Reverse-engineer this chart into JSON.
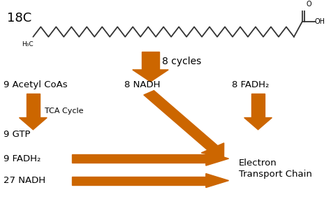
{
  "bg_color": "#ffffff",
  "arrow_color": "#cc6600",
  "text_color": "#000000",
  "figsize": [
    4.74,
    2.95
  ],
  "dpi": 100,
  "title_18C": "18C",
  "molecule_label": "H₃C",
  "cycles_label": "8 cycles",
  "acetyl_label": "9 Acetyl CoAs",
  "tca_label": "TCA Cycle",
  "nadh_label": "8 NADH",
  "fadh2_top_label": "8 FADH₂",
  "gtp_label": "9 GTP",
  "fadh2_bot_label": "9 FADH₂",
  "nadh_bot_label": "27 NADH",
  "etc_label": "Electron\nTransport Chain"
}
